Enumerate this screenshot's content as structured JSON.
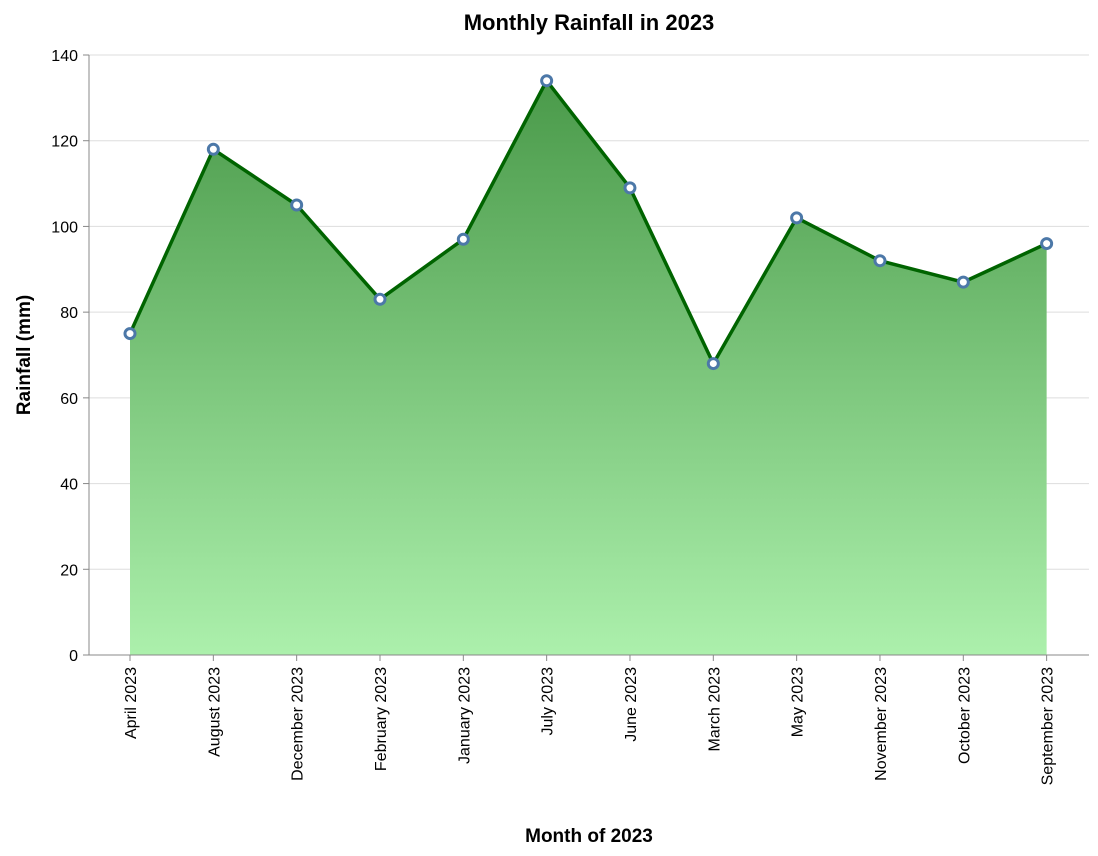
{
  "chart_data": {
    "type": "area",
    "title": "Monthly Rainfall in 2023",
    "xlabel": "Month of 2023",
    "ylabel": "Rainfall (mm)",
    "categories": [
      "April 2023",
      "August 2023",
      "December 2023",
      "February 2023",
      "January 2023",
      "July 2023",
      "June 2023",
      "March 2023",
      "May 2023",
      "November 2023",
      "October 2023",
      "September 2023"
    ],
    "values": [
      75,
      118,
      105,
      83,
      97,
      134,
      109,
      68,
      102,
      92,
      87,
      96
    ],
    "ylim": [
      0,
      140
    ],
    "yticks": [
      "0",
      "20",
      "40",
      "60",
      "80",
      "100",
      "120",
      "140"
    ],
    "grid": true,
    "colors": {
      "line": "#006400",
      "fill_top": "#4a9a4a",
      "fill_bottom": "#acf0ac",
      "point_stroke": "#4c78a8",
      "point_fill": "#ffffff"
    }
  }
}
